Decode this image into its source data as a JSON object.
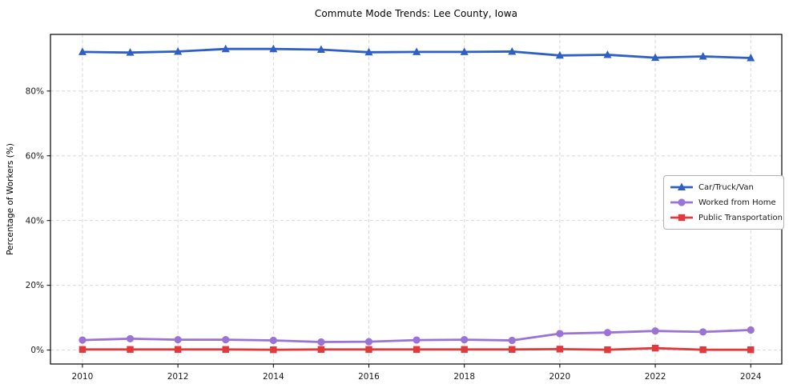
{
  "chart_data": {
    "type": "line",
    "title": "Commute Mode Trends: Lee County, Iowa",
    "xlabel": "",
    "ylabel": "Percentage of Workers (%)",
    "x": [
      2010,
      2011,
      2012,
      2013,
      2014,
      2015,
      2016,
      2017,
      2018,
      2019,
      2020,
      2021,
      2022,
      2023,
      2024
    ],
    "series": [
      {
        "name": "Car/Truck/Van",
        "color": "#2e5fc6",
        "marker": "triangle",
        "values": [
          92.1,
          91.9,
          92.2,
          93.0,
          93.0,
          92.8,
          92.0,
          92.1,
          92.1,
          92.2,
          91.0,
          91.2,
          90.3,
          90.7,
          90.2
        ]
      },
      {
        "name": "Worked from Home",
        "color": "#9b72d6",
        "marker": "circle",
        "values": [
          3.1,
          3.5,
          3.2,
          3.2,
          3.0,
          2.5,
          2.6,
          3.1,
          3.2,
          3.0,
          5.1,
          5.4,
          5.9,
          5.6,
          6.2
        ]
      },
      {
        "name": "Public Transportation",
        "color": "#e23a3c",
        "marker": "square",
        "values": [
          0.2,
          0.2,
          0.2,
          0.2,
          0.1,
          0.2,
          0.2,
          0.2,
          0.2,
          0.2,
          0.3,
          0.1,
          0.6,
          0.1,
          0.1
        ]
      }
    ],
    "xticks": [
      2010,
      2012,
      2014,
      2016,
      2018,
      2020,
      2022,
      2024
    ],
    "xtick_labels": [
      "2010",
      "2012",
      "2014",
      "2016",
      "2018",
      "2020",
      "2022",
      "2024"
    ],
    "yticks": [
      0,
      20,
      40,
      60,
      80
    ],
    "ytick_labels": [
      "0%",
      "20%",
      "40%",
      "60%",
      "80%"
    ],
    "xlim": [
      2009.33,
      2024.65
    ],
    "ylim": [
      -4.3,
      97.5
    ],
    "grid": true,
    "grid_color": "#d4d4d4",
    "frame_color": "#000000",
    "tick_text_color": "#1a1a1a",
    "legend_position": "center-right"
  }
}
